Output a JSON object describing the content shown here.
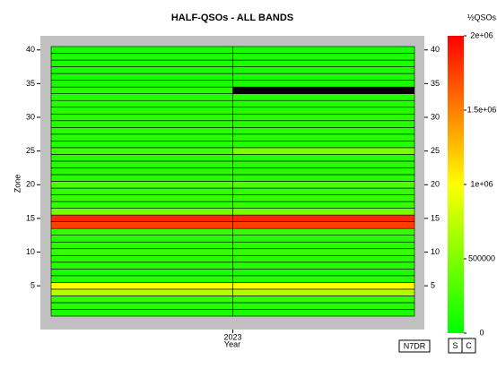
{
  "chart_data": {
    "type": "heatmap",
    "title": "HALF-QSOs - ALL BANDS",
    "x_label": "Year",
    "y_label": "Zone",
    "colorbar_label": "½QSOs",
    "x_bins": [
      2022.5,
      2023,
      2023.5
    ],
    "xlim": [
      2022.5,
      2023.5
    ],
    "xticks": [
      2023
    ],
    "y": [
      1,
      2,
      3,
      4,
      5,
      6,
      7,
      8,
      9,
      10,
      11,
      12,
      13,
      14,
      15,
      16,
      17,
      18,
      19,
      20,
      21,
      22,
      23,
      24,
      25,
      26,
      27,
      28,
      29,
      30,
      31,
      32,
      33,
      34,
      35,
      36,
      37,
      38,
      39,
      40
    ],
    "ylim": [
      0.5,
      40.5
    ],
    "yticks": [
      5,
      10,
      15,
      20,
      25,
      30,
      35,
      40
    ],
    "values": [
      [
        100000,
        100000
      ],
      [
        150000,
        150000
      ],
      [
        200000,
        200000
      ],
      [
        700000,
        700000
      ],
      [
        1000000,
        1000000
      ],
      [
        150000,
        150000
      ],
      [
        100000,
        100000
      ],
      [
        150000,
        150000
      ],
      [
        150000,
        150000
      ],
      [
        200000,
        200000
      ],
      [
        150000,
        150000
      ],
      [
        150000,
        150000
      ],
      [
        200000,
        200000
      ],
      [
        1750000,
        1750000
      ],
      [
        1850000,
        1850000
      ],
      [
        450000,
        450000
      ],
      [
        200000,
        200000
      ],
      [
        200000,
        200000
      ],
      [
        200000,
        200000
      ],
      [
        300000,
        300000
      ],
      [
        150000,
        150000
      ],
      [
        150000,
        150000
      ],
      [
        150000,
        150000
      ],
      [
        150000,
        150000
      ],
      [
        250000,
        500000
      ],
      [
        150000,
        150000
      ],
      [
        150000,
        150000
      ],
      [
        150000,
        150000
      ],
      [
        150000,
        150000
      ],
      [
        150000,
        150000
      ],
      [
        150000,
        150000
      ],
      [
        150000,
        150000
      ],
      [
        150000,
        150000
      ],
      [
        150000,
        null
      ],
      [
        100000,
        100000
      ],
      [
        100000,
        100000
      ],
      [
        100000,
        100000
      ],
      [
        100000,
        100000
      ],
      [
        100000,
        100000
      ],
      [
        100000,
        100000
      ]
    ],
    "colorscale": [
      "#00ff00",
      "#ffff00",
      "#ff0000"
    ],
    "null_color": "#000000",
    "clim": [
      0,
      2000000
    ],
    "cticks": [
      0,
      500000,
      {
        "value": 1000000,
        "label": "1e+06"
      },
      {
        "value": 1500000,
        "label": "1.5e+06"
      },
      {
        "value": 2000000,
        "label": "2e+06"
      }
    ],
    "callsign": "N7DR",
    "buttons": [
      "S",
      "C"
    ]
  }
}
